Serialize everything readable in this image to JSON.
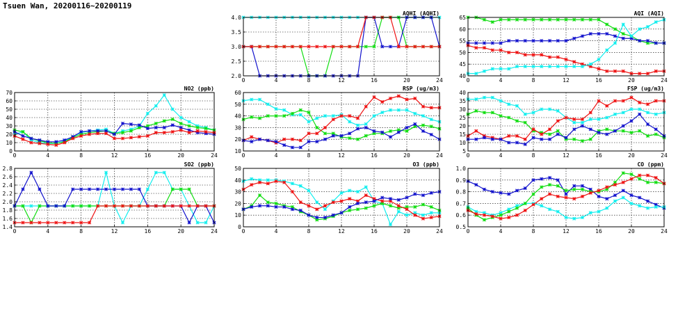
{
  "page": {
    "title": "Tsuen Wan, 20200116~20200119"
  },
  "colors": {
    "red": "#ee1111",
    "green": "#11dd11",
    "blue": "#1111cc",
    "cyan": "#11eeee"
  },
  "chart_data": [
    {
      "id": "aqhi",
      "type": "line",
      "title": "AQHI (AQHI)",
      "ylim": [
        2.0,
        4.0
      ],
      "yticks": [
        "2.0",
        "2.5",
        "3.0",
        "3.5",
        "4.0"
      ],
      "xlim": [
        0,
        24
      ],
      "xticks": [
        "0",
        "4",
        "8",
        "12",
        "16",
        "20",
        "24"
      ],
      "grid": true,
      "series": [
        {
          "color": "cyan",
          "values": [
            4,
            4,
            4,
            4,
            4,
            4,
            4,
            4,
            4,
            4,
            4,
            4,
            4,
            4,
            4,
            4,
            4,
            4,
            4,
            4,
            4,
            4,
            4,
            4,
            4
          ]
        },
        {
          "color": "green",
          "values": [
            3,
            3,
            3,
            3,
            3,
            3,
            3,
            3,
            2,
            2,
            2,
            3,
            3,
            3,
            3,
            3,
            3,
            4,
            4,
            4,
            3,
            3,
            3,
            3,
            3
          ]
        },
        {
          "color": "blue",
          "values": [
            3,
            3,
            2,
            2,
            2,
            2,
            2,
            2,
            2,
            2,
            2,
            2,
            2,
            2,
            2,
            4,
            4,
            3,
            3,
            3,
            4,
            4,
            4,
            4,
            3
          ]
        },
        {
          "color": "red",
          "values": [
            3,
            3,
            3,
            3,
            3,
            3,
            3,
            3,
            3,
            3,
            3,
            3,
            3,
            3,
            3,
            4,
            4,
            4,
            4,
            3,
            3,
            3,
            3,
            3,
            3
          ]
        }
      ]
    },
    {
      "id": "aqi",
      "type": "line",
      "title": "AQI (AQI)",
      "ylim": [
        40,
        65
      ],
      "yticks": [
        "40",
        "45",
        "50",
        "55",
        "60",
        "65"
      ],
      "xlim": [
        0,
        24
      ],
      "xticks": [
        "0",
        "4",
        "8",
        "12",
        "16",
        "20",
        "24"
      ],
      "grid": true,
      "series": [
        {
          "color": "green",
          "values": [
            65,
            65,
            64,
            63,
            64,
            64,
            64,
            64,
            64,
            64,
            64,
            64,
            64,
            64,
            64,
            64,
            64,
            62,
            60,
            58,
            57,
            55,
            54,
            54,
            54
          ]
        },
        {
          "color": "blue",
          "values": [
            54,
            54,
            54,
            54,
            54,
            55,
            55,
            55,
            55,
            55,
            55,
            55,
            55,
            56,
            57,
            58,
            58,
            58,
            57,
            56,
            56,
            55,
            55,
            54,
            54
          ]
        },
        {
          "color": "red",
          "values": [
            53,
            52,
            52,
            51,
            51,
            50,
            50,
            49,
            49,
            49,
            48,
            48,
            47,
            46,
            45,
            44,
            43,
            42,
            42,
            42,
            41,
            41,
            41,
            42,
            42
          ]
        },
        {
          "color": "cyan",
          "values": [
            41,
            41,
            42,
            43,
            43,
            43,
            44,
            44,
            44,
            44,
            44,
            44,
            44,
            44,
            44,
            45,
            47,
            51,
            54,
            62,
            57,
            60,
            61,
            63,
            64
          ]
        }
      ]
    },
    {
      "id": "no2",
      "type": "line",
      "title": "NO2 (ppb)",
      "ylim": [
        0,
        70
      ],
      "yticks": [
        "0",
        "10",
        "20",
        "30",
        "40",
        "50",
        "60",
        "70"
      ],
      "xlim": [
        0,
        24
      ],
      "xticks": [
        "0",
        "4",
        "8",
        "12",
        "16",
        "20",
        "24"
      ],
      "grid": true,
      "series": [
        {
          "color": "cyan",
          "values": [
            20,
            23,
            13,
            10,
            9,
            9,
            12,
            17,
            22,
            24,
            25,
            26,
            21,
            24,
            26,
            30,
            45,
            54,
            67,
            50,
            40,
            35,
            30,
            28,
            25
          ]
        },
        {
          "color": "green",
          "values": [
            25,
            23,
            15,
            12,
            10,
            9,
            11,
            16,
            20,
            22,
            23,
            24,
            21,
            22,
            24,
            28,
            30,
            33,
            36,
            38,
            33,
            30,
            28,
            27,
            25
          ]
        },
        {
          "color": "blue",
          "values": [
            23,
            18,
            15,
            13,
            11,
            11,
            13,
            17,
            23,
            24,
            24,
            24,
            20,
            33,
            32,
            31,
            27,
            28,
            28,
            31,
            28,
            25,
            22,
            21,
            20
          ]
        },
        {
          "color": "red",
          "values": [
            18,
            14,
            10,
            9,
            8,
            7,
            10,
            15,
            18,
            20,
            21,
            21,
            15,
            15,
            16,
            17,
            18,
            22,
            22,
            23,
            25,
            22,
            24,
            23,
            22
          ]
        }
      ]
    },
    {
      "id": "rsp",
      "type": "line",
      "title": "RSP (ug/m3)",
      "ylim": [
        10,
        60
      ],
      "yticks": [
        "10",
        "20",
        "30",
        "40",
        "50",
        "60"
      ],
      "xlim": [
        0,
        24
      ],
      "xticks": [
        "0",
        "4",
        "8",
        "12",
        "16",
        "20",
        "24"
      ],
      "grid": true,
      "series": [
        {
          "color": "cyan",
          "values": [
            53,
            54,
            54,
            50,
            46,
            45,
            41,
            41,
            35,
            38,
            40,
            40,
            41,
            35,
            32,
            33,
            40,
            43,
            45,
            45,
            45,
            42,
            40,
            37,
            35
          ]
        },
        {
          "color": "green",
          "values": [
            37,
            39,
            38,
            40,
            40,
            40,
            42,
            45,
            43,
            30,
            25,
            25,
            22,
            21,
            20,
            23,
            25,
            25,
            27,
            28,
            27,
            31,
            32,
            31,
            29
          ]
        },
        {
          "color": "red",
          "values": [
            19,
            22,
            20,
            19,
            17,
            20,
            20,
            19,
            25,
            25,
            30,
            37,
            40,
            40,
            38,
            48,
            56,
            52,
            55,
            57,
            54,
            55,
            48,
            47,
            47
          ]
        },
        {
          "color": "blue",
          "values": [
            19,
            18,
            20,
            19,
            18,
            15,
            13,
            13,
            18,
            18,
            20,
            23,
            23,
            25,
            29,
            30,
            27,
            26,
            22,
            26,
            30,
            33,
            27,
            24,
            20
          ]
        }
      ]
    },
    {
      "id": "fsp",
      "type": "line",
      "title": "FSP (ug/m3)",
      "ylim": [
        5,
        40
      ],
      "yticks": [
        "5",
        "10",
        "15",
        "20",
        "25",
        "30",
        "35",
        "40"
      ],
      "xlim": [
        0,
        24
      ],
      "xticks": [
        "0",
        "4",
        "8",
        "12",
        "16",
        "20",
        "24"
      ],
      "grid": true,
      "series": [
        {
          "color": "cyan",
          "values": [
            36,
            36,
            37,
            37,
            35,
            33,
            32,
            27,
            28,
            30,
            30,
            29,
            25,
            22,
            22,
            24,
            24,
            25,
            27,
            28,
            30,
            30,
            28,
            27,
            28
          ]
        },
        {
          "color": "green",
          "values": [
            27,
            29,
            28,
            28,
            26,
            25,
            23,
            22,
            17,
            16,
            15,
            17,
            12,
            12,
            11,
            12,
            17,
            18,
            17,
            17,
            16,
            17,
            14,
            15,
            13
          ]
        },
        {
          "color": "red",
          "values": [
            14,
            17,
            14,
            13,
            12,
            14,
            14,
            12,
            18,
            15,
            18,
            23,
            25,
            24,
            24,
            28,
            35,
            32,
            35,
            35,
            37,
            34,
            33,
            35,
            35
          ]
        },
        {
          "color": "blue",
          "values": [
            12,
            12,
            13,
            12,
            12,
            10,
            10,
            9,
            13,
            12,
            12,
            15,
            13,
            18,
            20,
            18,
            16,
            15,
            17,
            20,
            23,
            27,
            21,
            18,
            14
          ]
        }
      ]
    },
    {
      "id": "so2",
      "type": "line",
      "title": "SO2 (ppb)",
      "ylim": [
        1.4,
        2.8
      ],
      "yticks": [
        "1.4",
        "1.6",
        "1.8",
        "2.0",
        "2.2",
        "2.4",
        "2.6",
        "2.8"
      ],
      "xlim": [
        0,
        24
      ],
      "xticks": [
        "0",
        "4",
        "8",
        "12",
        "16",
        "20",
        "24"
      ],
      "grid": true,
      "series": [
        {
          "color": "cyan",
          "values": [
            1.9,
            1.9,
            1.9,
            1.9,
            1.9,
            1.9,
            1.9,
            1.9,
            1.9,
            1.9,
            1.9,
            2.7,
            1.9,
            1.5,
            1.9,
            1.9,
            2.3,
            2.7,
            2.7,
            2.3,
            2.3,
            1.9,
            1.5,
            1.5,
            1.9
          ]
        },
        {
          "color": "green",
          "values": [
            1.9,
            1.9,
            1.5,
            1.9,
            1.9,
            1.9,
            1.9,
            1.9,
            1.9,
            1.9,
            1.9,
            1.9,
            1.9,
            1.9,
            1.9,
            1.9,
            1.9,
            1.9,
            1.9,
            2.3,
            2.3,
            2.3,
            1.9,
            1.9,
            1.9
          ]
        },
        {
          "color": "blue",
          "values": [
            1.9,
            2.3,
            2.7,
            2.3,
            1.9,
            1.9,
            1.9,
            2.3,
            2.3,
            2.3,
            2.3,
            2.3,
            2.3,
            2.3,
            2.3,
            2.3,
            1.9,
            1.9,
            1.9,
            1.9,
            1.9,
            1.5,
            1.9,
            1.9,
            1.5
          ]
        },
        {
          "color": "red",
          "values": [
            1.5,
            1.5,
            1.5,
            1.5,
            1.5,
            1.5,
            1.5,
            1.5,
            1.5,
            1.5,
            1.9,
            1.9,
            1.9,
            1.9,
            1.9,
            1.9,
            1.9,
            1.9,
            1.9,
            1.9,
            1.9,
            1.9,
            1.9,
            1.9,
            1.9
          ]
        }
      ]
    },
    {
      "id": "o3",
      "type": "line",
      "title": "O3 (ppb)",
      "ylim": [
        0,
        50
      ],
      "yticks": [
        "0",
        "10",
        "20",
        "30",
        "40",
        "50"
      ],
      "xlim": [
        0,
        24
      ],
      "xticks": [
        "0",
        "4",
        "8",
        "12",
        "16",
        "20",
        "24"
      ],
      "grid": true,
      "series": [
        {
          "color": "cyan",
          "values": [
            39,
            41,
            40,
            40,
            40,
            39,
            37,
            35,
            31,
            21,
            15,
            22,
            29,
            31,
            30,
            34,
            22,
            20,
            2,
            13,
            10,
            12,
            10,
            12,
            12
          ]
        },
        {
          "color": "green",
          "values": [
            15,
            18,
            27,
            21,
            20,
            18,
            17,
            13,
            10,
            6,
            7,
            9,
            12,
            14,
            15,
            16,
            18,
            20,
            18,
            16,
            17,
            17,
            19,
            17,
            14
          ]
        },
        {
          "color": "red",
          "values": [
            32,
            36,
            38,
            37,
            39,
            38,
            30,
            21,
            18,
            15,
            18,
            21,
            22,
            24,
            22,
            27,
            24,
            22,
            22,
            18,
            15,
            10,
            7,
            8,
            9
          ]
        },
        {
          "color": "blue",
          "values": [
            15,
            17,
            18,
            18,
            17,
            17,
            15,
            14,
            10,
            8,
            8,
            10,
            12,
            17,
            20,
            21,
            22,
            25,
            24,
            23,
            25,
            28,
            27,
            29,
            30
          ]
        }
      ]
    },
    {
      "id": "co",
      "type": "line",
      "title": "CO (ppm)",
      "ylim": [
        0.5,
        1.0
      ],
      "yticks": [
        "0.5",
        "0.6",
        "0.7",
        "0.8",
        "0.9",
        "1.0"
      ],
      "xlim": [
        0,
        24
      ],
      "xticks": [
        "0",
        "4",
        "8",
        "12",
        "16",
        "20",
        "24"
      ],
      "grid": true,
      "series": [
        {
          "color": "blue",
          "values": [
            0.89,
            0.86,
            0.82,
            0.8,
            0.79,
            0.78,
            0.81,
            0.83,
            0.9,
            0.91,
            0.92,
            0.9,
            0.78,
            0.85,
            0.85,
            0.82,
            0.76,
            0.74,
            0.77,
            0.81,
            0.77,
            0.75,
            0.72,
            0.69,
            0.66
          ]
        },
        {
          "color": "cyan",
          "values": [
            0.67,
            0.63,
            0.62,
            0.6,
            0.62,
            0.65,
            0.68,
            0.7,
            0.7,
            0.68,
            0.65,
            0.63,
            0.58,
            0.57,
            0.58,
            0.62,
            0.63,
            0.66,
            0.72,
            0.75,
            0.7,
            0.68,
            0.66,
            0.67,
            0.67
          ]
        },
        {
          "color": "green",
          "values": [
            0.66,
            0.6,
            0.56,
            0.58,
            0.6,
            0.63,
            0.66,
            0.7,
            0.78,
            0.84,
            0.86,
            0.85,
            0.81,
            0.82,
            0.82,
            0.8,
            0.8,
            0.82,
            0.88,
            0.96,
            0.95,
            0.91,
            0.88,
            0.88,
            0.87
          ]
        },
        {
          "color": "red",
          "values": [
            0.64,
            0.61,
            0.6,
            0.59,
            0.57,
            0.58,
            0.6,
            0.64,
            0.69,
            0.74,
            0.78,
            0.76,
            0.75,
            0.74,
            0.76,
            0.79,
            0.81,
            0.84,
            0.86,
            0.88,
            0.91,
            0.94,
            0.94,
            0.92,
            0.87
          ]
        }
      ]
    }
  ]
}
